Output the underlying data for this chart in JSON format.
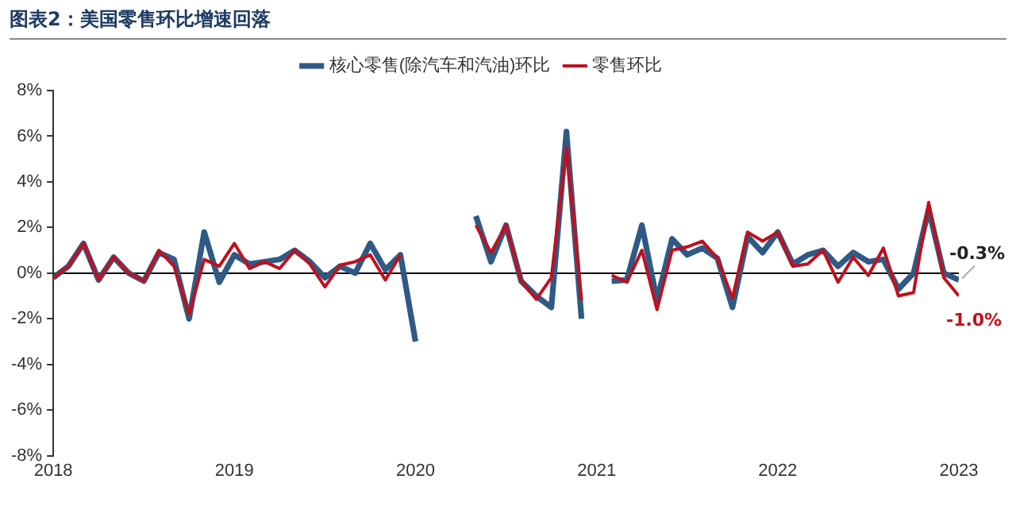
{
  "chart_data": {
    "type": "line",
    "title": "图表2：美国零售环比增速回落",
    "x": [
      "2018-03",
      "2018-04",
      "2018-05",
      "2018-06",
      "2018-07",
      "2018-08",
      "2018-09",
      "2018-10",
      "2018-11",
      "2018-12",
      "2019-01",
      "2019-02",
      "2019-03",
      "2019-04",
      "2019-05",
      "2019-06",
      "2019-07",
      "2019-08",
      "2019-09",
      "2019-10",
      "2019-11",
      "2019-12",
      "2020-01",
      "2020-02",
      "2020-03",
      "2020-04",
      "2020-05",
      "2020-06",
      "2020-07",
      "2020-08",
      "2020-09",
      "2020-10",
      "2020-11",
      "2020-12",
      "2021-01",
      "2021-02",
      "2021-03",
      "2021-04",
      "2021-05",
      "2021-06",
      "2021-07",
      "2021-08",
      "2021-09",
      "2021-10",
      "2021-11",
      "2021-12",
      "2022-01",
      "2022-02",
      "2022-03",
      "2022-04",
      "2022-05",
      "2022-06",
      "2022-07",
      "2022-08",
      "2022-09",
      "2022-10",
      "2022-11",
      "2022-12",
      "2023-01",
      "2023-02",
      "2023-03"
    ],
    "series": [
      {
        "name": "核心零售(除汽车和汽油)环比",
        "color": "#2f5a85",
        "values": [
          -0.2,
          0.3,
          1.3,
          -0.3,
          0.7,
          0.0,
          -0.35,
          0.9,
          0.6,
          -2.0,
          1.8,
          -0.4,
          0.8,
          0.4,
          0.5,
          0.6,
          1.0,
          0.5,
          -0.2,
          0.3,
          0.0,
          1.3,
          0.15,
          0.8,
          -3.0,
          null,
          null,
          null,
          2.5,
          0.5,
          2.1,
          -0.35,
          -1.0,
          -1.5,
          6.2,
          -2.0,
          null,
          -0.35,
          -0.3,
          2.1,
          -1.2,
          1.5,
          0.8,
          1.1,
          0.65,
          -1.5,
          1.6,
          0.9,
          1.8,
          0.4,
          0.8,
          1.0,
          0.3,
          0.9,
          0.5,
          0.6,
          -0.7,
          0.0,
          2.8,
          0.0,
          -0.3
        ]
      },
      {
        "name": "零售环比",
        "color": "#c0101e",
        "values": [
          -0.2,
          0.3,
          1.3,
          -0.3,
          0.7,
          0.0,
          -0.35,
          1.0,
          0.3,
          -1.8,
          0.6,
          0.3,
          1.3,
          0.2,
          0.5,
          0.2,
          1.0,
          0.4,
          -0.6,
          0.35,
          0.5,
          0.8,
          -0.3,
          0.8,
          null,
          null,
          null,
          null,
          2.1,
          0.9,
          2.1,
          -0.35,
          -1.15,
          -0.2,
          5.5,
          -1.2,
          null,
          -0.1,
          -0.4,
          1.0,
          -1.6,
          1.0,
          1.15,
          1.4,
          0.65,
          -1.1,
          1.8,
          1.4,
          1.8,
          0.3,
          0.4,
          1.0,
          -0.4,
          0.7,
          -0.1,
          1.1,
          -1.0,
          -0.85,
          3.1,
          -0.2,
          -1.0
        ]
      }
    ],
    "xlim": [
      "2018-03",
      "2023-03"
    ],
    "xticks": [
      {
        "value": "2018-03",
        "label": "2018"
      },
      {
        "value": "2019-03",
        "label": "2019"
      },
      {
        "value": "2020-03",
        "label": "2020"
      },
      {
        "value": "2021-03",
        "label": "2021"
      },
      {
        "value": "2022-03",
        "label": "2022"
      },
      {
        "value": "2023-03",
        "label": "2023"
      }
    ],
    "ylim": [
      -8,
      8
    ],
    "yticks": [
      {
        "value": -8,
        "label": "-8%"
      },
      {
        "value": -6,
        "label": "-6%"
      },
      {
        "value": -4,
        "label": "-4%"
      },
      {
        "value": -2,
        "label": "-2%"
      },
      {
        "value": 0,
        "label": "0%"
      },
      {
        "value": 2,
        "label": "2%"
      },
      {
        "value": 4,
        "label": "4%"
      },
      {
        "value": 6,
        "label": "6%"
      },
      {
        "value": 8,
        "label": "8%"
      }
    ],
    "annotations": [
      {
        "text": "-0.3%",
        "x": "2023-03",
        "y": -0.3
      },
      {
        "text": "-1.0%",
        "x": "2023-03",
        "y": -1.0
      }
    ],
    "legend": "top",
    "marker": "none",
    "line_style": "solid"
  }
}
